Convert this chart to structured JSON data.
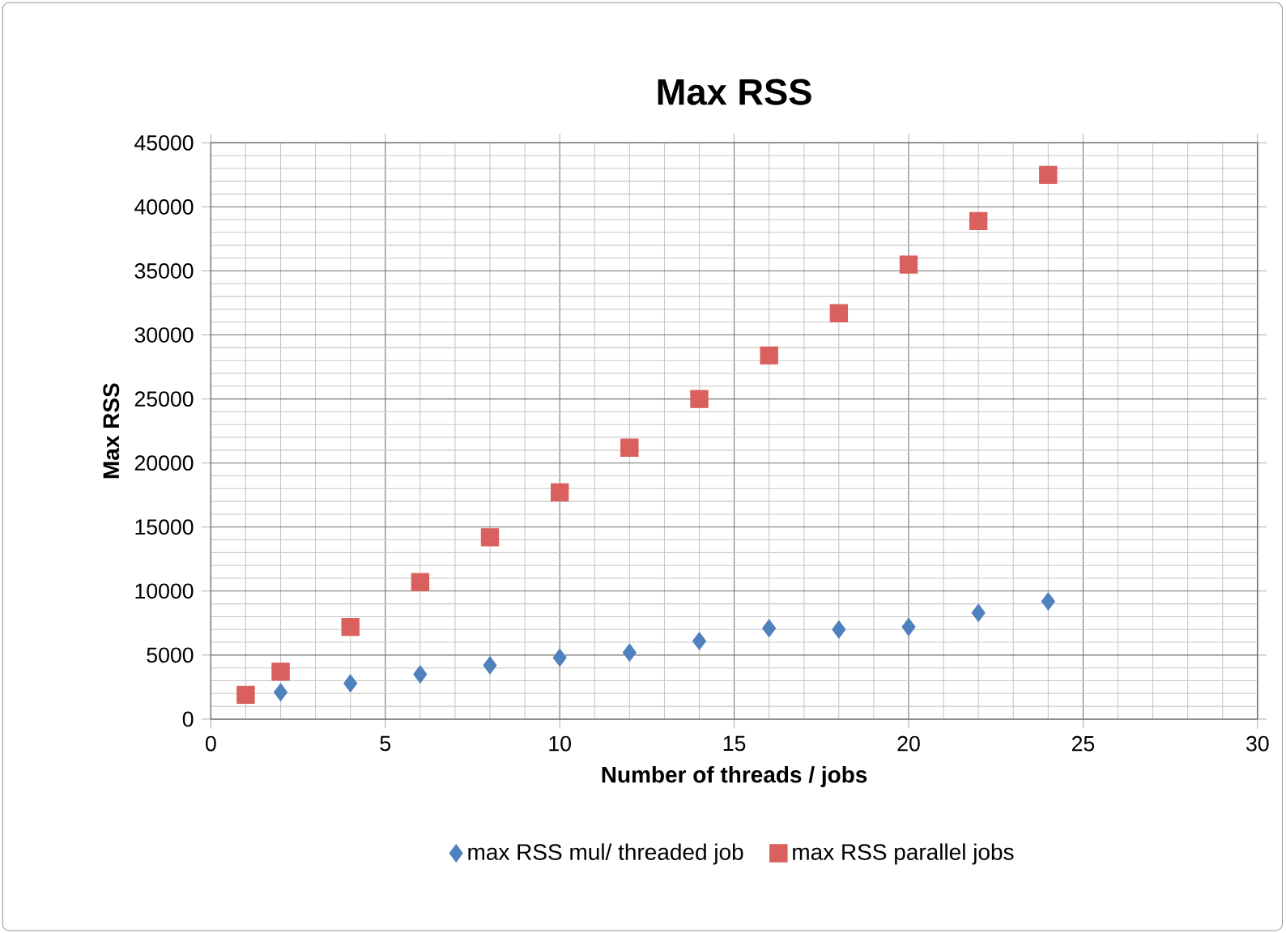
{
  "chart_data": {
    "type": "scatter",
    "title": "Max RSS",
    "xlabel": "Number of threads / jobs",
    "ylabel": "Max RSS",
    "xlim": [
      0,
      30
    ],
    "xticks": [
      0,
      5,
      10,
      15,
      20,
      25,
      30
    ],
    "ylim": [
      0,
      45000
    ],
    "yticks": [
      0,
      5000,
      10000,
      15000,
      20000,
      25000,
      30000,
      35000,
      40000,
      45000
    ],
    "grid": true,
    "legend": "bottom",
    "series": [
      {
        "name": "max RSS mul/ threaded job",
        "color": "#4f81bd",
        "marker": "diamond",
        "x": [
          2,
          4,
          6,
          8,
          10,
          12,
          14,
          16,
          18,
          20,
          22,
          24
        ],
        "values": [
          2100,
          2800,
          3500,
          4200,
          4800,
          5200,
          6100,
          7100,
          7000,
          7200,
          8300,
          9200
        ]
      },
      {
        "name": "max RSS parallel jobs",
        "color": "#d9605c",
        "marker": "square",
        "x": [
          1,
          2,
          4,
          6,
          8,
          10,
          12,
          14,
          16,
          18,
          20,
          22,
          24
        ],
        "values": [
          1900,
          3700,
          7200,
          10700,
          14200,
          17700,
          21200,
          25000,
          28400,
          31700,
          35500,
          38900,
          42500
        ]
      }
    ]
  }
}
